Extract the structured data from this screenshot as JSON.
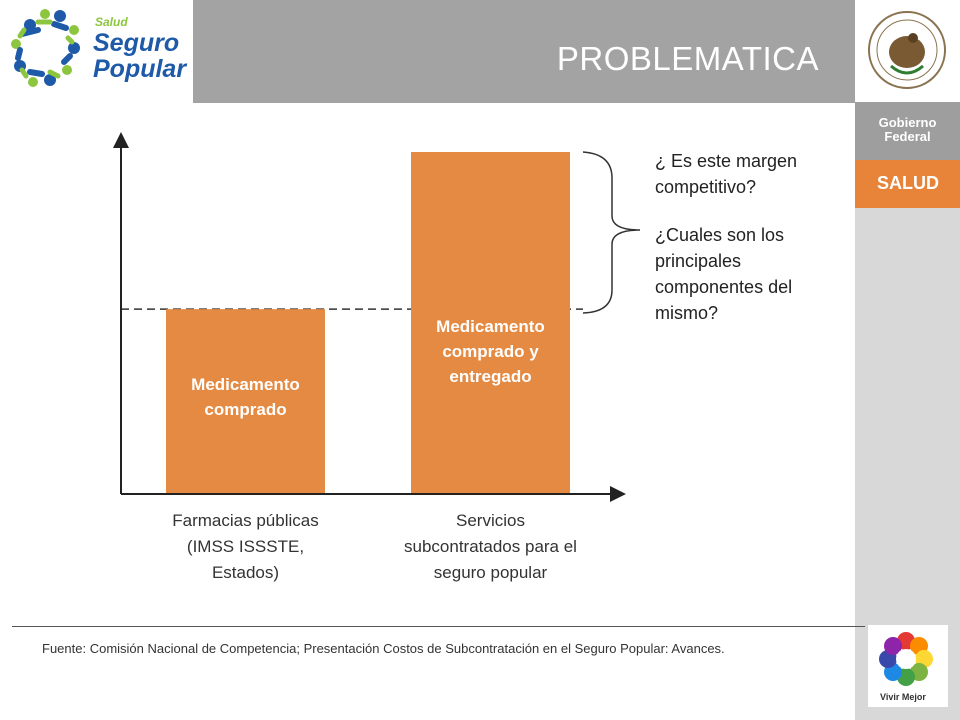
{
  "header": {
    "title": "PROBLEMATICA",
    "logo": {
      "top_text": "Salud",
      "line1": "Seguro",
      "line2": "Popular"
    }
  },
  "sidebar": {
    "gobierno_line1": "Gobierno",
    "gobierno_line2": "Federal",
    "salud": "SALUD",
    "vivir": "Vivir Mejor"
  },
  "questions": {
    "q1": "¿ Es este margen competitivo?",
    "q2": "¿Cuales son los principales componentes del mismo?"
  },
  "chart_data": {
    "type": "bar",
    "categories": [
      "Farmacias públicas (IMSS ISSSTE, Estados)",
      "Servicios subcontratados para el seguro popular"
    ],
    "values": [
      1,
      1.85
    ],
    "bar_labels": [
      "Medicamento comprado",
      "Medicamento comprado y entregado"
    ],
    "ylim": [
      0,
      1.92
    ],
    "reference_line": 1,
    "bar_color": "#e58a42",
    "axis_ticks": false
  },
  "footer": {
    "source": "Fuente: Comisión Nacional de Competencia; Presentación Costos de Subcontratación en el Seguro Popular: Avances."
  },
  "colors": {
    "accent": "#e8833a",
    "band": "#a3a3a3",
    "logo_blue": "#1e5aa8",
    "logo_green": "#8cc63f"
  }
}
